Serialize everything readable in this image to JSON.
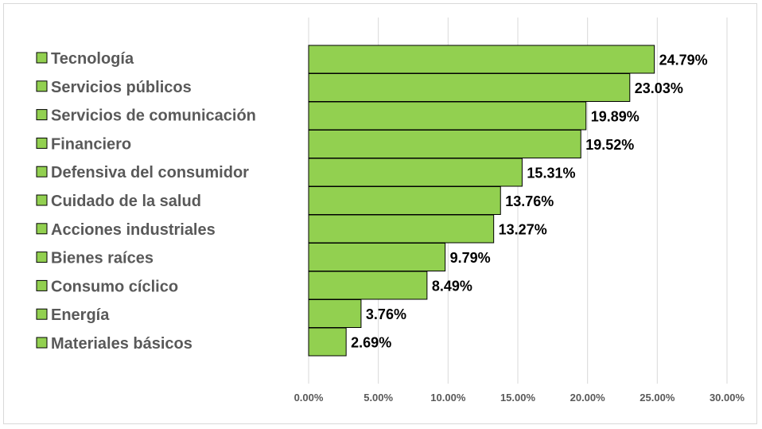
{
  "chart_data": {
    "type": "bar",
    "orientation": "horizontal",
    "categories": [
      "Tecnología",
      "Servicios públicos",
      "Servicios de comunicación",
      "Financiero",
      "Defensiva del consumidor",
      "Cuidado de la salud",
      "Acciones industriales",
      "Bienes raíces",
      "Consumo cíclico",
      "Energía",
      "Materiales básicos"
    ],
    "values": [
      24.79,
      23.03,
      19.89,
      19.52,
      15.31,
      13.76,
      13.27,
      9.79,
      8.49,
      3.76,
      2.69
    ],
    "data_labels": [
      "24.79%",
      "23.03%",
      "19.89%",
      "19.52%",
      "15.31%",
      "13.76%",
      "13.27%",
      "9.79%",
      "8.49%",
      "3.76%",
      "2.69%"
    ],
    "xticks": [
      0,
      5,
      10,
      15,
      20,
      25,
      30
    ],
    "xtick_labels": [
      "0.00%",
      "5.00%",
      "10.00%",
      "15.00%",
      "20.00%",
      "25.00%",
      "30.00%"
    ],
    "xlim": [
      0,
      30
    ],
    "grid": true,
    "legend_position": "left",
    "bar_color": "#92d050",
    "title": "",
    "xlabel": "",
    "ylabel": ""
  }
}
